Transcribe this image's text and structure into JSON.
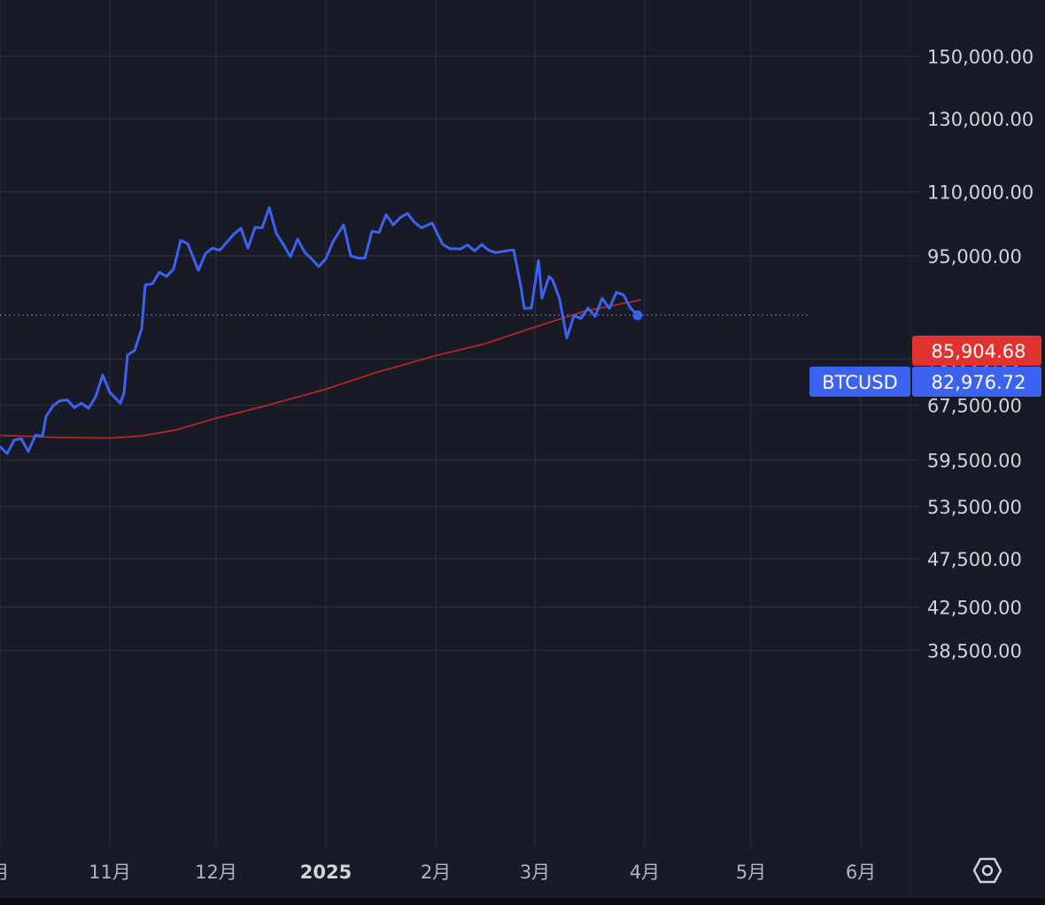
{
  "colors": {
    "background": "#181a25",
    "grid": "#2a2e39",
    "price_line": "#3b62f0",
    "ma_line": "#b3262c",
    "price_badge": "#3b62f0",
    "ma_badge": "#e0332f",
    "axis_text": "#d1d4dc"
  },
  "chart_data": {
    "type": "line",
    "symbol": "BTCUSD",
    "y_scale": "log",
    "grid": true,
    "ylim": [
      34500,
      172000
    ],
    "y_ticks": [
      {
        "value": 150000,
        "label": "150,000.00"
      },
      {
        "value": 130000,
        "label": "130,000.00"
      },
      {
        "value": 110000,
        "label": "110,000.00"
      },
      {
        "value": 95000,
        "label": "95,000.00"
      },
      {
        "value": 75000,
        "label": "75,000.00"
      },
      {
        "value": 67500,
        "label": "67,500.00"
      },
      {
        "value": 59500,
        "label": "59,500.00"
      },
      {
        "value": 53500,
        "label": "53,500.00"
      },
      {
        "value": 47500,
        "label": "47,500.00"
      },
      {
        "value": 42500,
        "label": "42,500.00"
      },
      {
        "value": 38500,
        "label": "38,500.00"
      }
    ],
    "x_ticks": [
      {
        "date": "2024-10-01",
        "label": "月",
        "bold": false
      },
      {
        "date": "2024-11-01",
        "label": "11月",
        "bold": false
      },
      {
        "date": "2024-12-01",
        "label": "12月",
        "bold": false
      },
      {
        "date": "2025-01-01",
        "label": "2025",
        "bold": true
      },
      {
        "date": "2025-02-01",
        "label": "2月",
        "bold": false
      },
      {
        "date": "2025-03-01",
        "label": "3月",
        "bold": false
      },
      {
        "date": "2025-04-01",
        "label": "4月",
        "bold": false
      },
      {
        "date": "2025-05-01",
        "label": "5月",
        "bold": false
      },
      {
        "date": "2025-06-01",
        "label": "6月",
        "bold": false
      }
    ],
    "last_price": {
      "label": "BTCUSD",
      "value": "82,976.72",
      "numeric": 82976.72
    },
    "ma_value": {
      "value": "85,904.68",
      "numeric": 85904.68
    },
    "series": [
      {
        "role": "price",
        "points": [
          [
            "2024-10-01",
            61400
          ],
          [
            "2024-10-03",
            60400
          ],
          [
            "2024-10-05",
            62300
          ],
          [
            "2024-10-07",
            62500
          ],
          [
            "2024-10-09",
            60700
          ],
          [
            "2024-10-11",
            63000
          ],
          [
            "2024-10-13",
            62900
          ],
          [
            "2024-10-14",
            65800
          ],
          [
            "2024-10-16",
            67400
          ],
          [
            "2024-10-18",
            68200
          ],
          [
            "2024-10-20",
            68300
          ],
          [
            "2024-10-22",
            67100
          ],
          [
            "2024-10-24",
            67800
          ],
          [
            "2024-10-26",
            67000
          ],
          [
            "2024-10-28",
            68800
          ],
          [
            "2024-10-30",
            72300
          ],
          [
            "2024-11-01",
            69500
          ],
          [
            "2024-11-04",
            67800
          ],
          [
            "2024-11-05",
            69400
          ],
          [
            "2024-11-06",
            75700
          ],
          [
            "2024-11-08",
            76500
          ],
          [
            "2024-11-10",
            80400
          ],
          [
            "2024-11-11",
            88900
          ],
          [
            "2024-11-13",
            89100
          ],
          [
            "2024-11-15",
            91500
          ],
          [
            "2024-11-17",
            90600
          ],
          [
            "2024-11-19",
            92200
          ],
          [
            "2024-11-21",
            98400
          ],
          [
            "2024-11-23",
            97700
          ],
          [
            "2024-11-26",
            91900
          ],
          [
            "2024-11-28",
            95500
          ],
          [
            "2024-11-30",
            96700
          ],
          [
            "2024-12-02",
            96200
          ],
          [
            "2024-12-04",
            98000
          ],
          [
            "2024-12-06",
            99800
          ],
          [
            "2024-12-08",
            101200
          ],
          [
            "2024-12-10",
            96700
          ],
          [
            "2024-12-12",
            101400
          ],
          [
            "2024-12-14",
            101300
          ],
          [
            "2024-12-16",
            106100
          ],
          [
            "2024-12-18",
            100000
          ],
          [
            "2024-12-20",
            97500
          ],
          [
            "2024-12-22",
            94800
          ],
          [
            "2024-12-24",
            98700
          ],
          [
            "2024-12-26",
            95800
          ],
          [
            "2024-12-28",
            94300
          ],
          [
            "2024-12-30",
            92700
          ],
          [
            "2025-01-01",
            94400
          ],
          [
            "2025-01-03",
            98100
          ],
          [
            "2025-01-06",
            102000
          ],
          [
            "2025-01-08",
            95000
          ],
          [
            "2025-01-10",
            94500
          ],
          [
            "2025-01-12",
            94500
          ],
          [
            "2025-01-14",
            100500
          ],
          [
            "2025-01-16",
            100200
          ],
          [
            "2025-01-18",
            104400
          ],
          [
            "2025-01-20",
            102000
          ],
          [
            "2025-01-22",
            103700
          ],
          [
            "2025-01-24",
            104700
          ],
          [
            "2025-01-26",
            102600
          ],
          [
            "2025-01-28",
            101300
          ],
          [
            "2025-01-31",
            102400
          ],
          [
            "2025-02-03",
            97500
          ],
          [
            "2025-02-05",
            96600
          ],
          [
            "2025-02-08",
            96500
          ],
          [
            "2025-02-10",
            97400
          ],
          [
            "2025-02-12",
            96100
          ],
          [
            "2025-02-14",
            97500
          ],
          [
            "2025-02-16",
            96200
          ],
          [
            "2025-02-18",
            95700
          ],
          [
            "2025-02-21",
            96100
          ],
          [
            "2025-02-23",
            96300
          ],
          [
            "2025-02-25",
            88700
          ],
          [
            "2025-02-26",
            84200
          ],
          [
            "2025-02-28",
            84300
          ],
          [
            "2025-03-02",
            94000
          ],
          [
            "2025-03-03",
            86200
          ],
          [
            "2025-03-05",
            90600
          ],
          [
            "2025-03-06",
            89900
          ],
          [
            "2025-03-08",
            86000
          ],
          [
            "2025-03-10",
            78700
          ],
          [
            "2025-03-12",
            82800
          ],
          [
            "2025-03-14",
            82300
          ],
          [
            "2025-03-16",
            84300
          ],
          [
            "2025-03-18",
            82700
          ],
          [
            "2025-03-20",
            86200
          ],
          [
            "2025-03-22",
            84200
          ],
          [
            "2025-03-24",
            87400
          ],
          [
            "2025-03-26",
            86900
          ],
          [
            "2025-03-28",
            84300
          ],
          [
            "2025-03-30",
            82900
          ]
        ]
      },
      {
        "role": "moving-average",
        "points": [
          [
            "2024-10-01",
            63000
          ],
          [
            "2024-10-16",
            62700
          ],
          [
            "2024-11-01",
            62600
          ],
          [
            "2024-11-10",
            62900
          ],
          [
            "2024-11-20",
            63800
          ],
          [
            "2024-12-01",
            65500
          ],
          [
            "2024-12-15",
            67400
          ],
          [
            "2025-01-01",
            70000
          ],
          [
            "2025-01-15",
            72700
          ],
          [
            "2025-02-01",
            75600
          ],
          [
            "2025-02-15",
            77700
          ],
          [
            "2025-03-01",
            80700
          ],
          [
            "2025-03-15",
            83700
          ],
          [
            "2025-03-31",
            85900
          ]
        ]
      }
    ]
  }
}
